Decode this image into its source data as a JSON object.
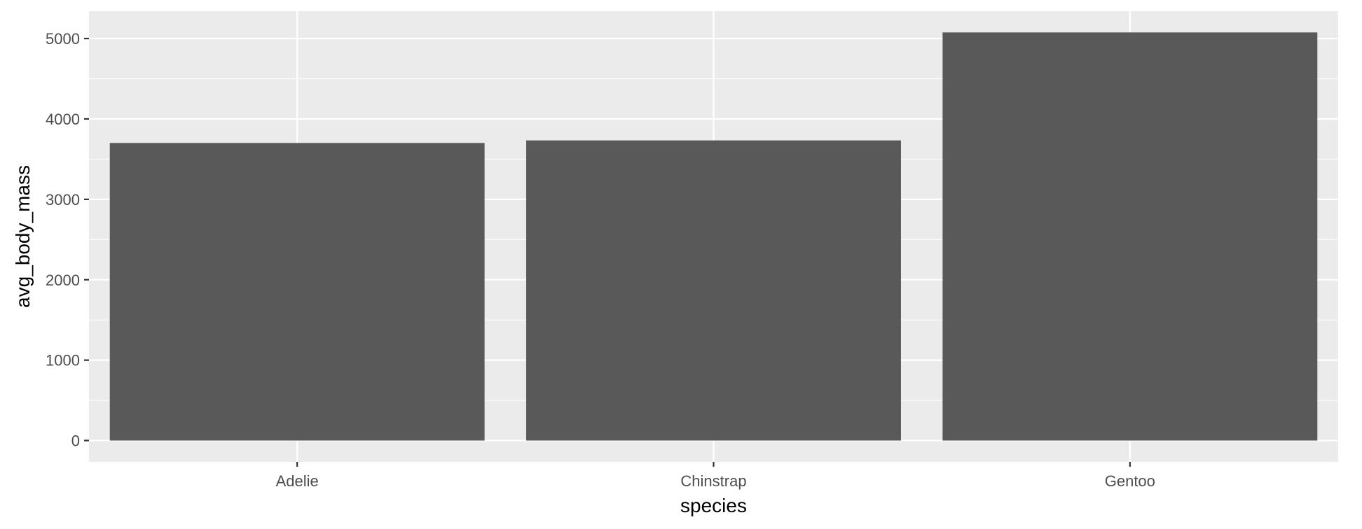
{
  "chart_data": {
    "type": "bar",
    "title": "",
    "xlabel": "species",
    "ylabel": "avg_body_mass",
    "categories": [
      "Adelie",
      "Chinstrap",
      "Gentoo"
    ],
    "values": [
      3701,
      3733,
      5076
    ],
    "ylim": [
      -265,
      5340
    ],
    "yticks": [
      0,
      1000,
      2000,
      3000,
      4000,
      5000
    ],
    "ytick_labels": [
      "0",
      "1000",
      "2000",
      "3000",
      "4000",
      "5000"
    ],
    "grid": true,
    "legend": "none",
    "colors": {
      "panel": "#ebebeb",
      "grid_major": "#ffffff",
      "bar": "#595959",
      "tick": "#333333"
    }
  }
}
